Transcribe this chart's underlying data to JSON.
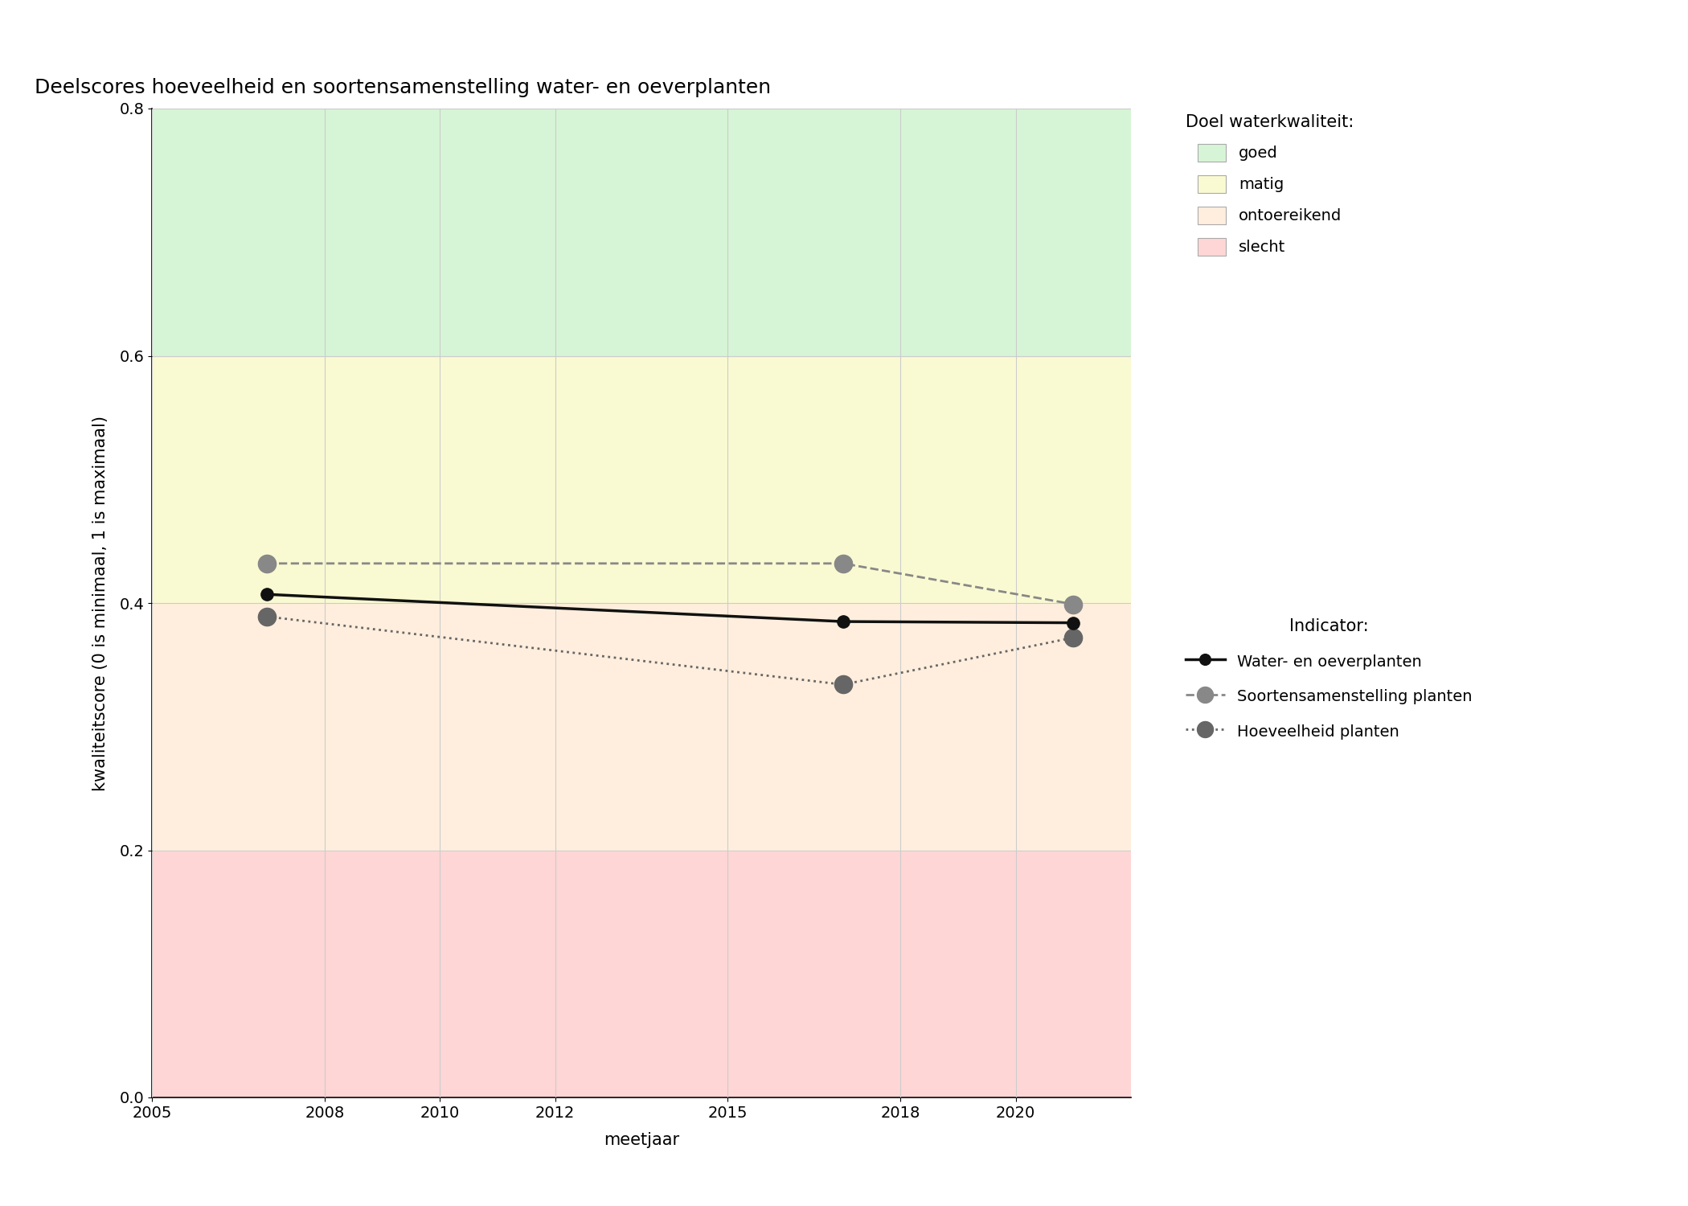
{
  "title": "Deelscores hoeveelheid en soortensamenstelling water- en oeverplanten",
  "xlabel": "meetjaar",
  "ylabel": "kwaliteitscore (0 is minimaal, 1 is maximaal)",
  "xlim": [
    2005,
    2022
  ],
  "ylim": [
    0.0,
    0.8
  ],
  "yticks": [
    0.0,
    0.2,
    0.4,
    0.6,
    0.8
  ],
  "xticks": [
    2005,
    2008,
    2010,
    2012,
    2015,
    2018,
    2020
  ],
  "bg_zones": [
    {
      "ymin": 0.0,
      "ymax": 0.2,
      "color": "#ffd6d6",
      "label": "slecht"
    },
    {
      "ymin": 0.2,
      "ymax": 0.4,
      "color": "#ffeedd",
      "label": "ontoereikend"
    },
    {
      "ymin": 0.4,
      "ymax": 0.6,
      "color": "#fafad2",
      "label": "matig"
    },
    {
      "ymin": 0.6,
      "ymax": 0.8,
      "color": "#d6f5d6",
      "label": "goed"
    }
  ],
  "series": [
    {
      "name": "Water- en oeverplanten",
      "years": [
        2007,
        2017,
        2021
      ],
      "values": [
        0.407,
        0.385,
        0.384
      ],
      "color": "#111111",
      "linestyle": "solid",
      "linewidth": 2.5,
      "markersize": 11,
      "marker": "o",
      "zorder": 5
    },
    {
      "name": "Soortensamenstelling planten",
      "years": [
        2007,
        2017,
        2021
      ],
      "values": [
        0.432,
        0.432,
        0.399
      ],
      "color": "#888888",
      "linestyle": "dashed",
      "linewidth": 2.0,
      "markersize": 16,
      "marker": "o",
      "zorder": 4
    },
    {
      "name": "Hoeveelheid planten",
      "years": [
        2007,
        2017,
        2021
      ],
      "values": [
        0.389,
        0.334,
        0.372
      ],
      "color": "#666666",
      "linestyle": "dotted",
      "linewidth": 2.0,
      "markersize": 16,
      "marker": "o",
      "zorder": 3
    }
  ],
  "legend_title_quality": "Doel waterkwaliteit:",
  "legend_title_indicator": "Indicator:",
  "bg_color": "#ffffff",
  "grid_color": "#cccccc",
  "title_fontsize": 18,
  "label_fontsize": 15,
  "tick_fontsize": 14,
  "legend_fontsize": 14
}
